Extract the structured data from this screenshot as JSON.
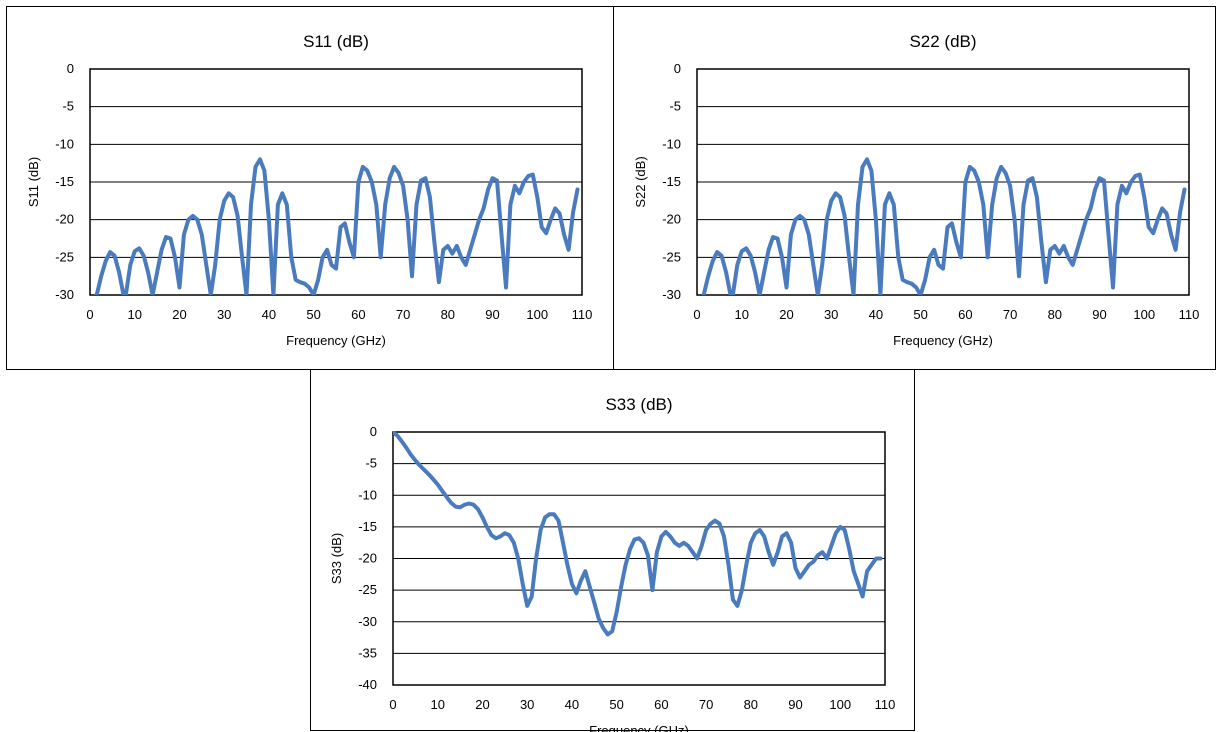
{
  "chart_data": [
    {
      "id": "s11",
      "type": "line",
      "title": "S11 (dB)",
      "xlabel": "Frequency (GHz)",
      "ylabel": "S11 (dB)",
      "xlim": [
        0,
        110
      ],
      "ylim": [
        -30,
        0
      ],
      "xticks": [
        0,
        10,
        20,
        30,
        40,
        50,
        60,
        70,
        80,
        90,
        100,
        110
      ],
      "yticks": [
        0,
        -5,
        -10,
        -15,
        -20,
        -25,
        -30
      ],
      "grid": "horizontal",
      "series": [
        {
          "color": "#4a7bbf",
          "x": [
            1.5,
            2.5,
            3.5,
            4.5,
            5.5,
            6.5,
            7.5,
            8,
            9,
            10,
            11,
            12,
            13,
            14,
            15,
            16,
            17,
            18,
            19,
            20,
            21,
            22,
            23,
            24,
            25,
            26,
            27,
            28,
            29,
            30,
            31,
            32,
            33,
            34,
            35,
            36,
            37,
            38,
            39,
            40,
            41,
            42,
            43,
            44,
            45,
            46,
            47,
            48,
            49,
            50,
            51,
            52,
            53,
            54,
            55,
            56,
            57,
            58,
            59,
            60,
            61,
            62,
            63,
            64,
            65,
            66,
            67,
            68,
            69,
            70,
            71,
            72,
            73,
            74,
            75,
            76,
            77,
            78,
            79,
            80,
            81,
            82,
            83,
            84,
            85,
            86,
            87,
            88,
            89,
            90,
            91,
            92,
            93,
            94,
            95,
            96,
            97,
            98,
            99,
            100,
            101,
            102,
            103,
            104,
            105,
            106,
            107,
            108,
            109
          ],
          "y": [
            -30,
            -27.5,
            -25.5,
            -24.3,
            -24.8,
            -27,
            -30,
            -30,
            -26,
            -24.2,
            -23.8,
            -24.8,
            -27,
            -30,
            -27,
            -24,
            -22.3,
            -22.5,
            -25,
            -29,
            -22,
            -20,
            -19.5,
            -20,
            -22,
            -26,
            -30,
            -26,
            -20,
            -17.5,
            -16.5,
            -17,
            -19.5,
            -25,
            -30,
            -18,
            -13,
            -12,
            -13.5,
            -20,
            -30,
            -18,
            -16.5,
            -18,
            -25,
            -28,
            -28.3,
            -28.5,
            -29,
            -30,
            -28,
            -25,
            -24,
            -26,
            -26.5,
            -21,
            -20.5,
            -23,
            -25,
            -15,
            -13,
            -13.5,
            -15,
            -18,
            -25,
            -18,
            -14.5,
            -13,
            -13.8,
            -15.5,
            -20,
            -27.5,
            -18,
            -14.8,
            -14.5,
            -17,
            -23,
            -28.3,
            -24,
            -23.5,
            -24.5,
            -23.5,
            -25,
            -26,
            -24,
            -22,
            -20,
            -18.5,
            -16,
            -14.5,
            -14.8,
            -22,
            -29,
            -18,
            -15.5,
            -16.5,
            -15,
            -14.2,
            -14,
            -17,
            -21,
            -21.8,
            -20,
            -18.5,
            -19.2,
            -22,
            -24,
            -19,
            -16
          ]
        }
      ]
    },
    {
      "id": "s22",
      "type": "line",
      "title": "S22 (dB)",
      "xlabel": "Frequency (GHz)",
      "ylabel": "S22 (dB)",
      "xlim": [
        0,
        110
      ],
      "ylim": [
        -30,
        0
      ],
      "xticks": [
        0,
        10,
        20,
        30,
        40,
        50,
        60,
        70,
        80,
        90,
        100,
        110
      ],
      "yticks": [
        0,
        -5,
        -10,
        -15,
        -20,
        -25,
        -30
      ],
      "grid": "horizontal",
      "series": [
        {
          "color": "#4a7bbf",
          "x": [
            1.5,
            2.5,
            3.5,
            4.5,
            5.5,
            6.5,
            7.5,
            8,
            9,
            10,
            11,
            12,
            13,
            14,
            15,
            16,
            17,
            18,
            19,
            20,
            21,
            22,
            23,
            24,
            25,
            26,
            27,
            28,
            29,
            30,
            31,
            32,
            33,
            34,
            35,
            36,
            37,
            38,
            39,
            40,
            41,
            42,
            43,
            44,
            45,
            46,
            47,
            48,
            49,
            50,
            51,
            52,
            53,
            54,
            55,
            56,
            57,
            58,
            59,
            60,
            61,
            62,
            63,
            64,
            65,
            66,
            67,
            68,
            69,
            70,
            71,
            72,
            73,
            74,
            75,
            76,
            77,
            78,
            79,
            80,
            81,
            82,
            83,
            84,
            85,
            86,
            87,
            88,
            89,
            90,
            91,
            92,
            93,
            94,
            95,
            96,
            97,
            98,
            99,
            100,
            101,
            102,
            103,
            104,
            105,
            106,
            107,
            108,
            109
          ],
          "y": [
            -30,
            -27.5,
            -25.5,
            -24.3,
            -24.8,
            -27,
            -30,
            -30,
            -26,
            -24.2,
            -23.8,
            -24.8,
            -27,
            -30,
            -27,
            -24,
            -22.3,
            -22.5,
            -25,
            -29,
            -22,
            -20,
            -19.5,
            -20,
            -22,
            -26,
            -30,
            -26,
            -20,
            -17.5,
            -16.5,
            -17,
            -19.5,
            -25,
            -30,
            -18,
            -13,
            -12,
            -13.5,
            -20,
            -30,
            -18,
            -16.5,
            -18,
            -25,
            -28,
            -28.3,
            -28.5,
            -29,
            -30,
            -28,
            -25,
            -24,
            -26,
            -26.5,
            -21,
            -20.5,
            -23,
            -25,
            -15,
            -13,
            -13.5,
            -15,
            -18,
            -25,
            -18,
            -14.5,
            -13,
            -13.8,
            -15.5,
            -20,
            -27.5,
            -18,
            -14.8,
            -14.5,
            -17,
            -23,
            -28.3,
            -24,
            -23.5,
            -24.5,
            -23.5,
            -25,
            -26,
            -24,
            -22,
            -20,
            -18.5,
            -16,
            -14.5,
            -14.8,
            -22,
            -29,
            -18,
            -15.5,
            -16.5,
            -15,
            -14.2,
            -14,
            -17,
            -21,
            -21.8,
            -20,
            -18.5,
            -19.2,
            -22,
            -24,
            -19,
            -16
          ]
        }
      ]
    },
    {
      "id": "s33",
      "type": "line",
      "title": "S33 (dB)",
      "xlabel": "Frequency (GHz)",
      "ylabel": "S33 (dB)",
      "xlim": [
        0,
        110
      ],
      "ylim": [
        -40,
        0
      ],
      "xticks": [
        0,
        10,
        20,
        30,
        40,
        50,
        60,
        70,
        80,
        90,
        100,
        110
      ],
      "yticks": [
        0,
        -5,
        -10,
        -15,
        -20,
        -25,
        -30,
        -35,
        -40
      ],
      "grid": "horizontal",
      "series": [
        {
          "color": "#4a7bbf",
          "x": [
            0,
            1,
            2,
            3,
            4,
            5,
            6,
            7,
            8,
            9,
            10,
            11,
            12,
            13,
            14,
            15,
            16,
            17,
            18,
            19,
            20,
            21,
            22,
            23,
            24,
            25,
            26,
            27,
            28,
            29,
            30,
            31,
            32,
            33,
            34,
            35,
            36,
            37,
            38,
            39,
            40,
            41,
            42,
            43,
            44,
            45,
            46,
            47,
            48,
            49,
            50,
            51,
            52,
            53,
            54,
            55,
            56,
            57,
            58,
            59,
            60,
            61,
            62,
            63,
            64,
            65,
            66,
            67,
            68,
            69,
            70,
            71,
            72,
            73,
            74,
            75,
            76,
            77,
            78,
            79,
            80,
            81,
            82,
            83,
            84,
            85,
            86,
            87,
            88,
            89,
            90,
            91,
            92,
            93,
            94,
            95,
            96,
            97,
            98,
            99,
            100,
            101,
            102,
            103,
            104,
            105,
            106,
            107,
            108,
            109
          ],
          "y": [
            0,
            -0.6,
            -1.5,
            -2.5,
            -3.6,
            -4.5,
            -5.3,
            -6.0,
            -6.7,
            -7.5,
            -8.3,
            -9.3,
            -10.3,
            -11.2,
            -11.8,
            -11.9,
            -11.5,
            -11.3,
            -11.5,
            -12.2,
            -13.5,
            -15.0,
            -16.3,
            -16.8,
            -16.5,
            -16.0,
            -16.3,
            -17.5,
            -20.0,
            -24.0,
            -27.5,
            -26.0,
            -20.0,
            -15.5,
            -13.5,
            -13.0,
            -13.0,
            -14.0,
            -17.5,
            -21.0,
            -24.0,
            -25.5,
            -23.5,
            -22.0,
            -24.5,
            -27.0,
            -29.5,
            -31.0,
            -32.0,
            -31.5,
            -28.5,
            -24.5,
            -21.0,
            -18.5,
            -17.0,
            -16.8,
            -17.5,
            -19.5,
            -25.0,
            -19.0,
            -16.5,
            -15.8,
            -16.5,
            -17.5,
            -18.0,
            -17.5,
            -18.0,
            -19.0,
            -20.0,
            -18.0,
            -15.5,
            -14.5,
            -14.0,
            -14.5,
            -16.5,
            -21.0,
            -26.5,
            -27.5,
            -25.0,
            -21.0,
            -17.5,
            -16.0,
            -15.5,
            -16.5,
            -19.0,
            -21.0,
            -19.0,
            -16.5,
            -16.0,
            -17.5,
            -21.5,
            -23.0,
            -22.0,
            -21.0,
            -20.5,
            -19.5,
            -19.0,
            -20.0,
            -18.0,
            -16.0,
            -15.0,
            -15.5,
            -18.5,
            -22.0,
            -24.0,
            -26.0,
            -22.0,
            -21.0,
            -20.0,
            -20.0
          ]
        }
      ]
    }
  ]
}
